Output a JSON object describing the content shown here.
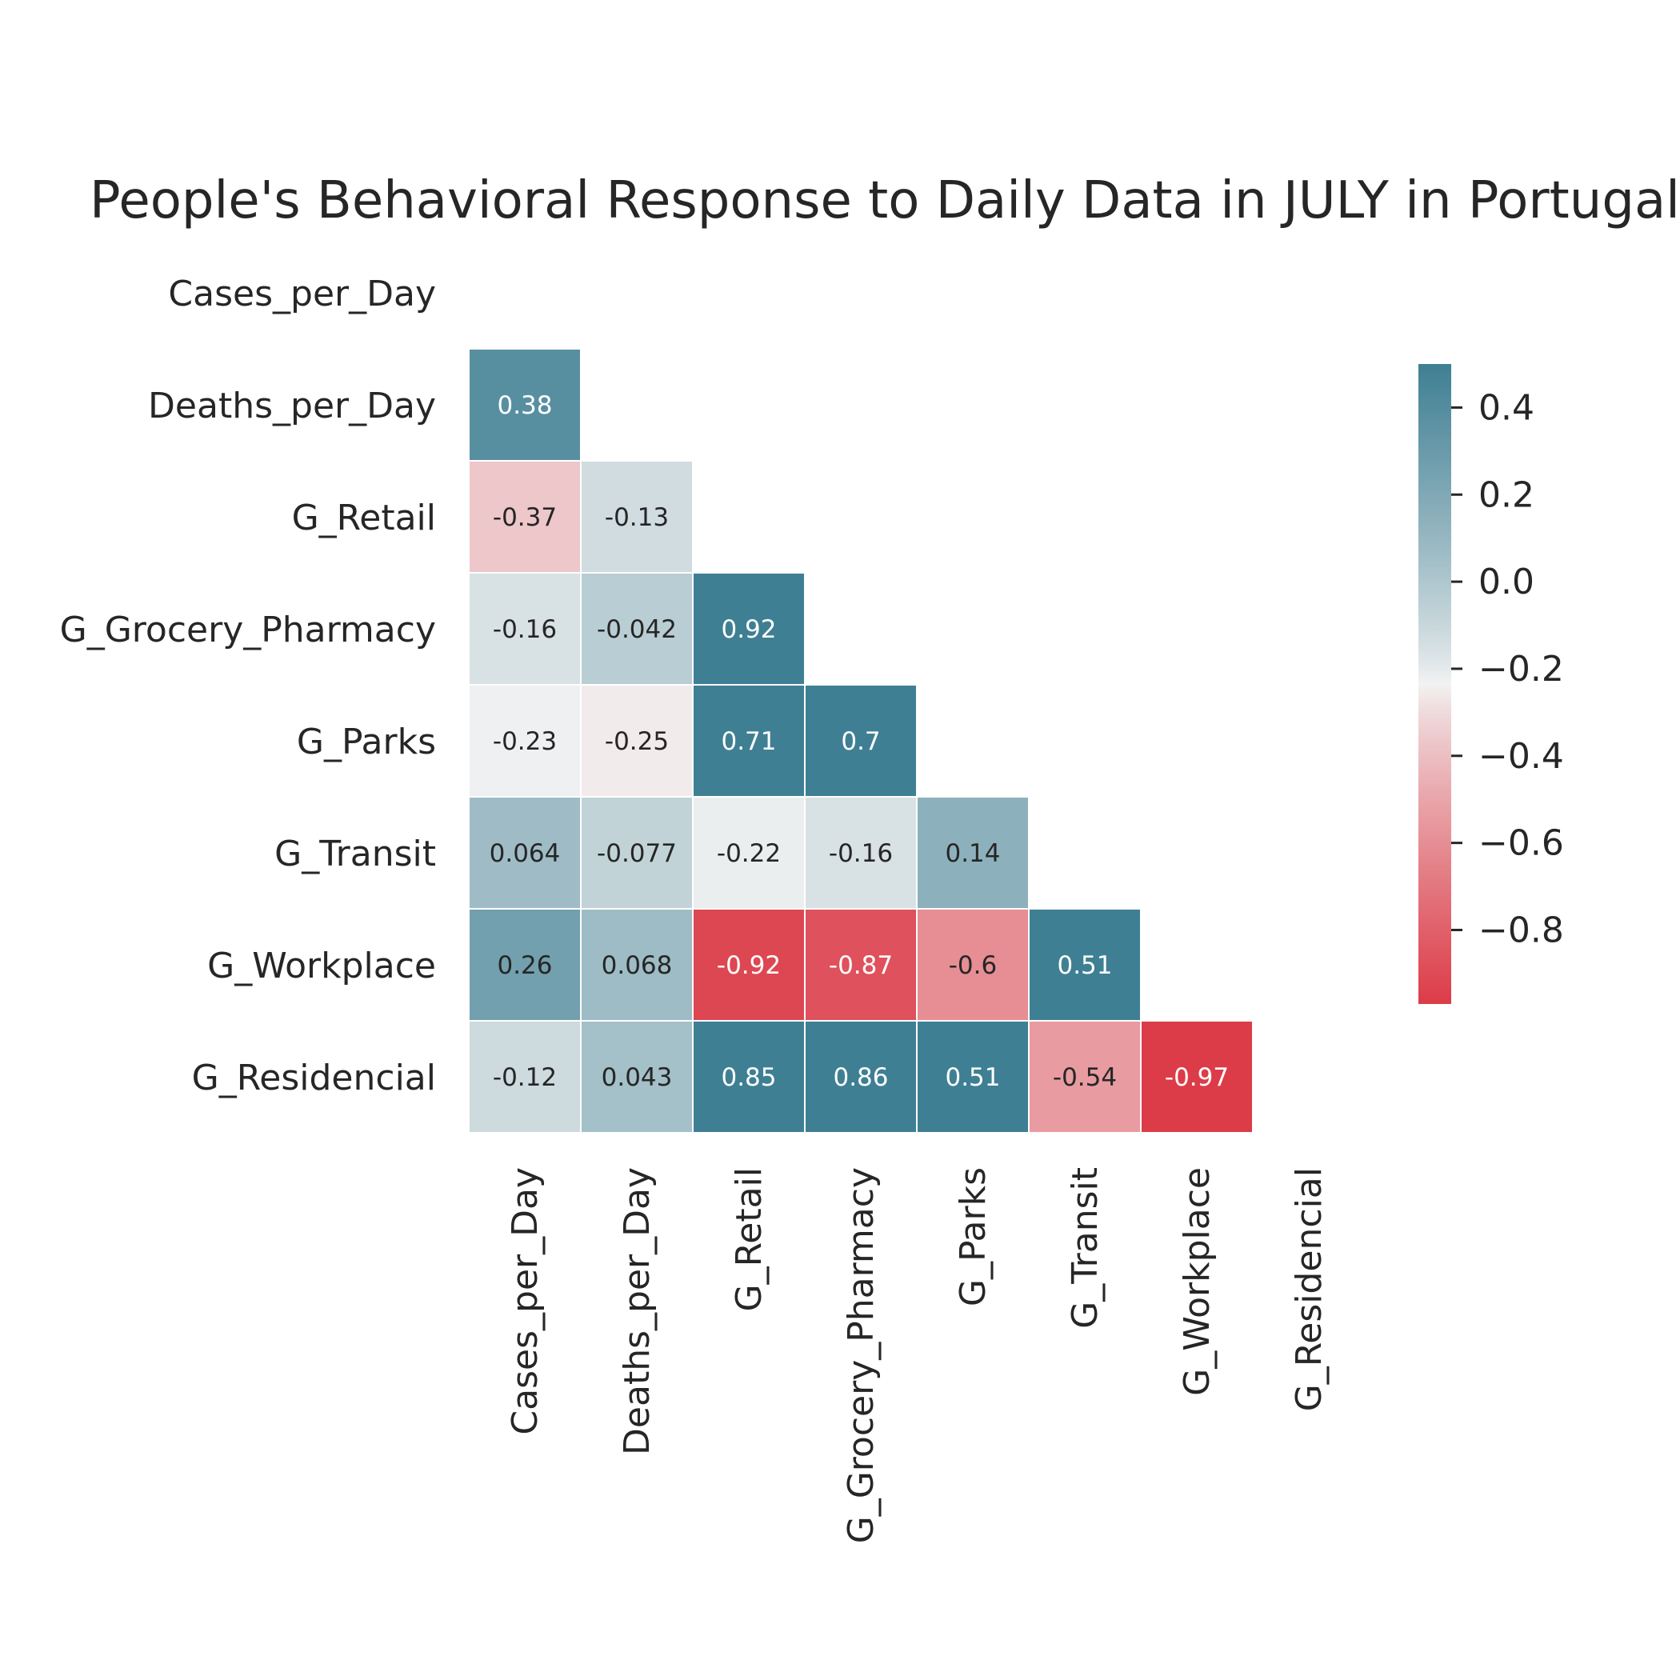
{
  "chart_data": {
    "type": "heatmap",
    "title": "People's Behavioral Response to Daily Data in JULY in Portugal",
    "variables": [
      "Cases_per_Day",
      "Deaths_per_Day",
      "G_Retail",
      "G_Grocery_Pharmacy",
      "G_Parks",
      "G_Transit",
      "G_Workplace",
      "G_Residencial"
    ],
    "mask": "upper-triangle-including-diagonal",
    "cells": [
      {
        "row": 1,
        "col": 0,
        "value": 0.38,
        "label": "0.38"
      },
      {
        "row": 2,
        "col": 0,
        "value": -0.37,
        "label": "-0.37"
      },
      {
        "row": 2,
        "col": 1,
        "value": -0.13,
        "label": "-0.13"
      },
      {
        "row": 3,
        "col": 0,
        "value": -0.16,
        "label": "-0.16"
      },
      {
        "row": 3,
        "col": 1,
        "value": -0.042,
        "label": "-0.042"
      },
      {
        "row": 3,
        "col": 2,
        "value": 0.92,
        "label": "0.92"
      },
      {
        "row": 4,
        "col": 0,
        "value": -0.23,
        "label": "-0.23"
      },
      {
        "row": 4,
        "col": 1,
        "value": -0.25,
        "label": "-0.25"
      },
      {
        "row": 4,
        "col": 2,
        "value": 0.71,
        "label": "0.71"
      },
      {
        "row": 4,
        "col": 3,
        "value": 0.7,
        "label": "0.7"
      },
      {
        "row": 5,
        "col": 0,
        "value": 0.064,
        "label": "0.064"
      },
      {
        "row": 5,
        "col": 1,
        "value": -0.077,
        "label": "-0.077"
      },
      {
        "row": 5,
        "col": 2,
        "value": -0.22,
        "label": "-0.22"
      },
      {
        "row": 5,
        "col": 3,
        "value": -0.16,
        "label": "-0.16"
      },
      {
        "row": 5,
        "col": 4,
        "value": 0.14,
        "label": "0.14"
      },
      {
        "row": 6,
        "col": 0,
        "value": 0.26,
        "label": "0.26"
      },
      {
        "row": 6,
        "col": 1,
        "value": 0.068,
        "label": "0.068"
      },
      {
        "row": 6,
        "col": 2,
        "value": -0.92,
        "label": "-0.92"
      },
      {
        "row": 6,
        "col": 3,
        "value": -0.87,
        "label": "-0.87"
      },
      {
        "row": 6,
        "col": 4,
        "value": -0.6,
        "label": "-0.6"
      },
      {
        "row": 6,
        "col": 5,
        "value": 0.51,
        "label": "0.51"
      },
      {
        "row": 7,
        "col": 0,
        "value": -0.12,
        "label": "-0.12"
      },
      {
        "row": 7,
        "col": 1,
        "value": 0.043,
        "label": "0.043"
      },
      {
        "row": 7,
        "col": 2,
        "value": 0.85,
        "label": "0.85"
      },
      {
        "row": 7,
        "col": 3,
        "value": 0.86,
        "label": "0.86"
      },
      {
        "row": 7,
        "col": 4,
        "value": 0.51,
        "label": "0.51"
      },
      {
        "row": 7,
        "col": 5,
        "value": -0.54,
        "label": "-0.54"
      },
      {
        "row": 7,
        "col": 6,
        "value": -0.97,
        "label": "-0.97"
      }
    ],
    "colorbar": {
      "vmin": -0.97,
      "vmax": 0.5,
      "center": -0.235,
      "ticks": [
        0.4,
        0.2,
        0.0,
        -0.2,
        -0.4,
        -0.6,
        -0.8
      ],
      "tick_labels": [
        "0.4",
        "0.2",
        "0.0",
        "−0.2",
        "−0.4",
        "−0.6",
        "−0.8"
      ]
    },
    "colors": {
      "low": "#dc3c48",
      "mid": "#f2f2f2",
      "high": "#3f7f93",
      "text_dark": "#262626",
      "text_light": "#ffffff"
    }
  }
}
